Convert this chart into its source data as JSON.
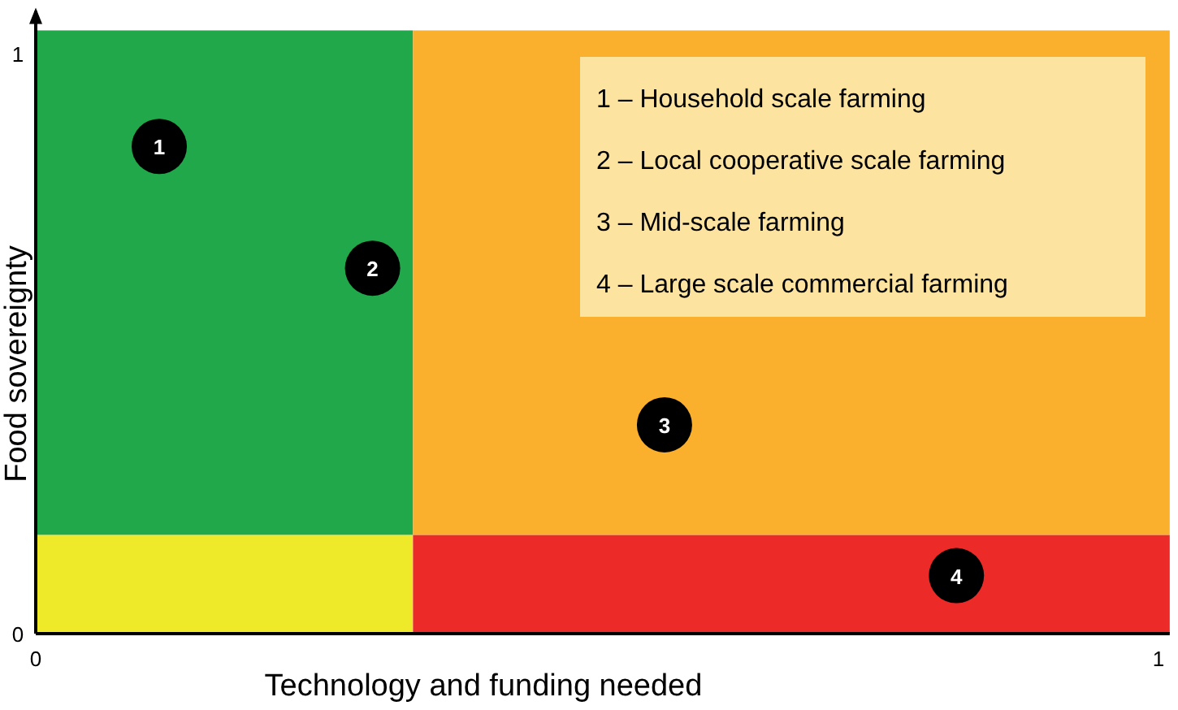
{
  "chart_data": {
    "type": "scatter",
    "xlabel": "Technology and funding needed",
    "ylabel": "Food sovereignty",
    "xlim": [
      0,
      1.01
    ],
    "ylim": [
      0,
      1.04
    ],
    "xticks": [
      0,
      1
    ],
    "yticks": [
      0,
      1
    ],
    "marker": "circle",
    "series": [
      {
        "color": "#000000",
        "x": [
          0.11,
          0.3,
          0.56,
          0.82
        ],
        "values": [
          0.84,
          0.63,
          0.36,
          0.1
        ]
      }
    ],
    "annotations": [
      {
        "text": "1",
        "x": 0.11,
        "y": 0.84
      },
      {
        "text": "2",
        "x": 0.3,
        "y": 0.63
      },
      {
        "text": "3",
        "x": 0.56,
        "y": 0.36
      },
      {
        "text": "4",
        "x": 0.82,
        "y": 0.1
      },
      "1 – Household scale farming",
      "2 – Local cooperative scale farming",
      "3 – Mid-scale farming",
      "4 – Large scale commercial farming"
    ]
  }
}
